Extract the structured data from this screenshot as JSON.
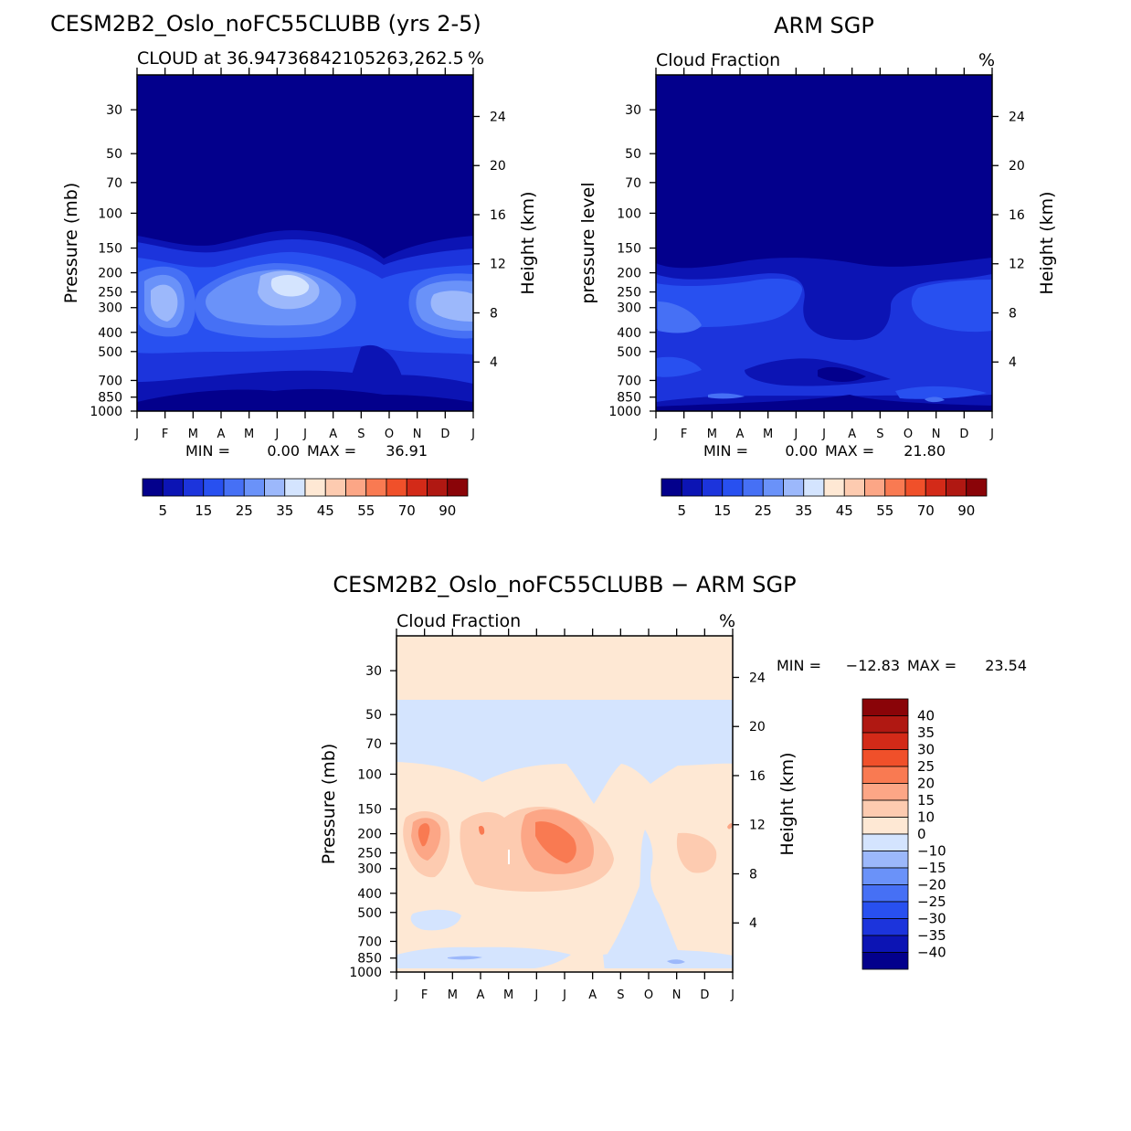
{
  "figure_title": "CESM2B2_Oslo_noFC55CLUBB (yrs 2-5)",
  "chart_data": [
    {
      "id": "model",
      "type": "heatmap",
      "title": "CESM2B2_Oslo_noFC55CLUBB (yrs 2-5)",
      "subtitle": "CLOUD at 36.94736842105263,262.5",
      "units": "%",
      "ylabel": "Pressure (mb)",
      "ylabel_right": "Height (km)",
      "x_ticks": [
        "J",
        "F",
        "M",
        "A",
        "M",
        "J",
        "J",
        "A",
        "S",
        "O",
        "N",
        "D",
        "J"
      ],
      "y_ticks": [
        30,
        50,
        70,
        100,
        150,
        200,
        250,
        300,
        400,
        500,
        700,
        850,
        1000
      ],
      "y_range_mb": [
        20,
        1000
      ],
      "height_ticks_km": [
        4,
        8,
        12,
        16,
        20,
        24
      ],
      "min_label": "MIN =",
      "min_value": "0.00",
      "max_label": "MAX =",
      "max_value": "36.91",
      "colorbar_labels": [
        "5",
        "15",
        "25",
        "35",
        "45",
        "55",
        "70",
        "90"
      ],
      "colorbar_colors": [
        "#03008c",
        "#0c14b4",
        "#1c34dc",
        "#2850f0",
        "#4670f5",
        "#6a92f9",
        "#9cb8fb",
        "#d4e4fe",
        "#fee8d4",
        "#fdcbb0",
        "#fca686",
        "#f97a52",
        "#f0502a",
        "#d32a18",
        "#b01812",
        "#8a0408"
      ]
    },
    {
      "id": "obs",
      "type": "heatmap",
      "title": "ARM SGP",
      "subtitle": "Cloud Fraction",
      "units": "%",
      "ylabel": "pressure level",
      "ylabel_right": "Height (km)",
      "x_ticks": [
        "J",
        "F",
        "M",
        "A",
        "M",
        "J",
        "J",
        "A",
        "S",
        "O",
        "N",
        "D",
        "J"
      ],
      "y_ticks": [
        30,
        50,
        70,
        100,
        150,
        200,
        250,
        300,
        400,
        500,
        700,
        850,
        1000
      ],
      "y_range_mb": [
        20,
        1000
      ],
      "height_ticks_km": [
        4,
        8,
        12,
        16,
        20,
        24
      ],
      "min_label": "MIN =",
      "min_value": "0.00",
      "max_label": "MAX =",
      "max_value": "21.80",
      "colorbar_labels": [
        "5",
        "15",
        "25",
        "35",
        "45",
        "55",
        "70",
        "90"
      ],
      "colorbar_colors": [
        "#03008c",
        "#0c14b4",
        "#1c34dc",
        "#2850f0",
        "#4670f5",
        "#6a92f9",
        "#9cb8fb",
        "#d4e4fe",
        "#fee8d4",
        "#fdcbb0",
        "#fca686",
        "#f97a52",
        "#f0502a",
        "#d32a18",
        "#b01812",
        "#8a0408"
      ]
    },
    {
      "id": "diff",
      "type": "heatmap",
      "title": "CESM2B2_Oslo_noFC55CLUBB - ARM SGP",
      "subtitle": "Cloud Fraction",
      "units": "%",
      "ylabel": "Pressure (mb)",
      "ylabel_right": "Height (km)",
      "x_ticks": [
        "J",
        "F",
        "M",
        "A",
        "M",
        "J",
        "J",
        "A",
        "S",
        "O",
        "N",
        "D",
        "J"
      ],
      "y_ticks": [
        30,
        50,
        70,
        100,
        150,
        200,
        250,
        300,
        400,
        500,
        700,
        850,
        1000
      ],
      "y_range_mb": [
        20,
        1000
      ],
      "height_ticks_km": [
        4,
        8,
        12,
        16,
        20,
        24
      ],
      "min_label": "MIN =",
      "min_value": "-12.83",
      "max_label": "MAX =",
      "max_value": "23.54",
      "colorbar_labels": [
        "40",
        "35",
        "30",
        "25",
        "20",
        "15",
        "10",
        "0",
        "-10",
        "-15",
        "-20",
        "-25",
        "-30",
        "-35",
        "-40"
      ],
      "colorbar_colors": [
        "#8a0408",
        "#b01812",
        "#d32a18",
        "#f0502a",
        "#f97a52",
        "#fca686",
        "#fdcbb0",
        "#fee8d4",
        "#d4e4fe",
        "#9cb8fb",
        "#6a92f9",
        "#4670f5",
        "#2850f0",
        "#1c34dc",
        "#0c14b4",
        "#03008c"
      ]
    }
  ]
}
